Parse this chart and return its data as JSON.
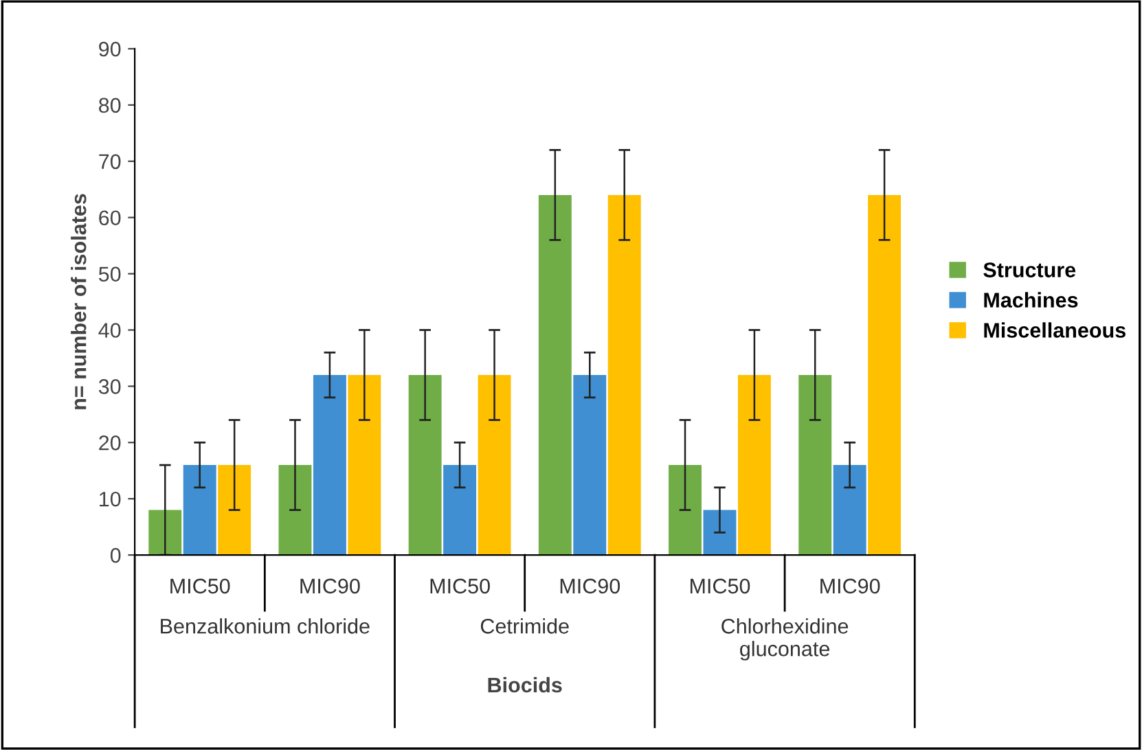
{
  "chart_data": {
    "type": "bar",
    "xlabel": "Biocids",
    "ylabel": "n= number of isolates",
    "categories": [
      "MIC50",
      "MIC90",
      "MIC50",
      "MIC90",
      "MIC50",
      "MIC90"
    ],
    "annotations": [
      "Benzalkonium chloride",
      "Cetrimide",
      "Chlorhexidine\ngluconate"
    ],
    "series": [
      {
        "name": "Structure",
        "color": "#70ad47",
        "values": [
          8,
          16,
          32,
          64,
          16,
          32
        ],
        "errors": [
          8,
          8,
          8,
          8,
          8,
          8
        ]
      },
      {
        "name": "Machines",
        "color": "#3f8fd2",
        "values": [
          16,
          32,
          16,
          32,
          8,
          16
        ],
        "errors": [
          4,
          4,
          4,
          4,
          4,
          4
        ]
      },
      {
        "name": "Miscellaneous",
        "color": "#ffc000",
        "values": [
          16,
          32,
          32,
          64,
          32,
          64
        ],
        "errors": [
          8,
          8,
          8,
          8,
          8,
          8
        ]
      }
    ],
    "ylim": [
      0,
      90
    ],
    "yticks": [
      0,
      10,
      20,
      30,
      40,
      50,
      60,
      70,
      80,
      90
    ],
    "grid": false,
    "legend": "right"
  }
}
